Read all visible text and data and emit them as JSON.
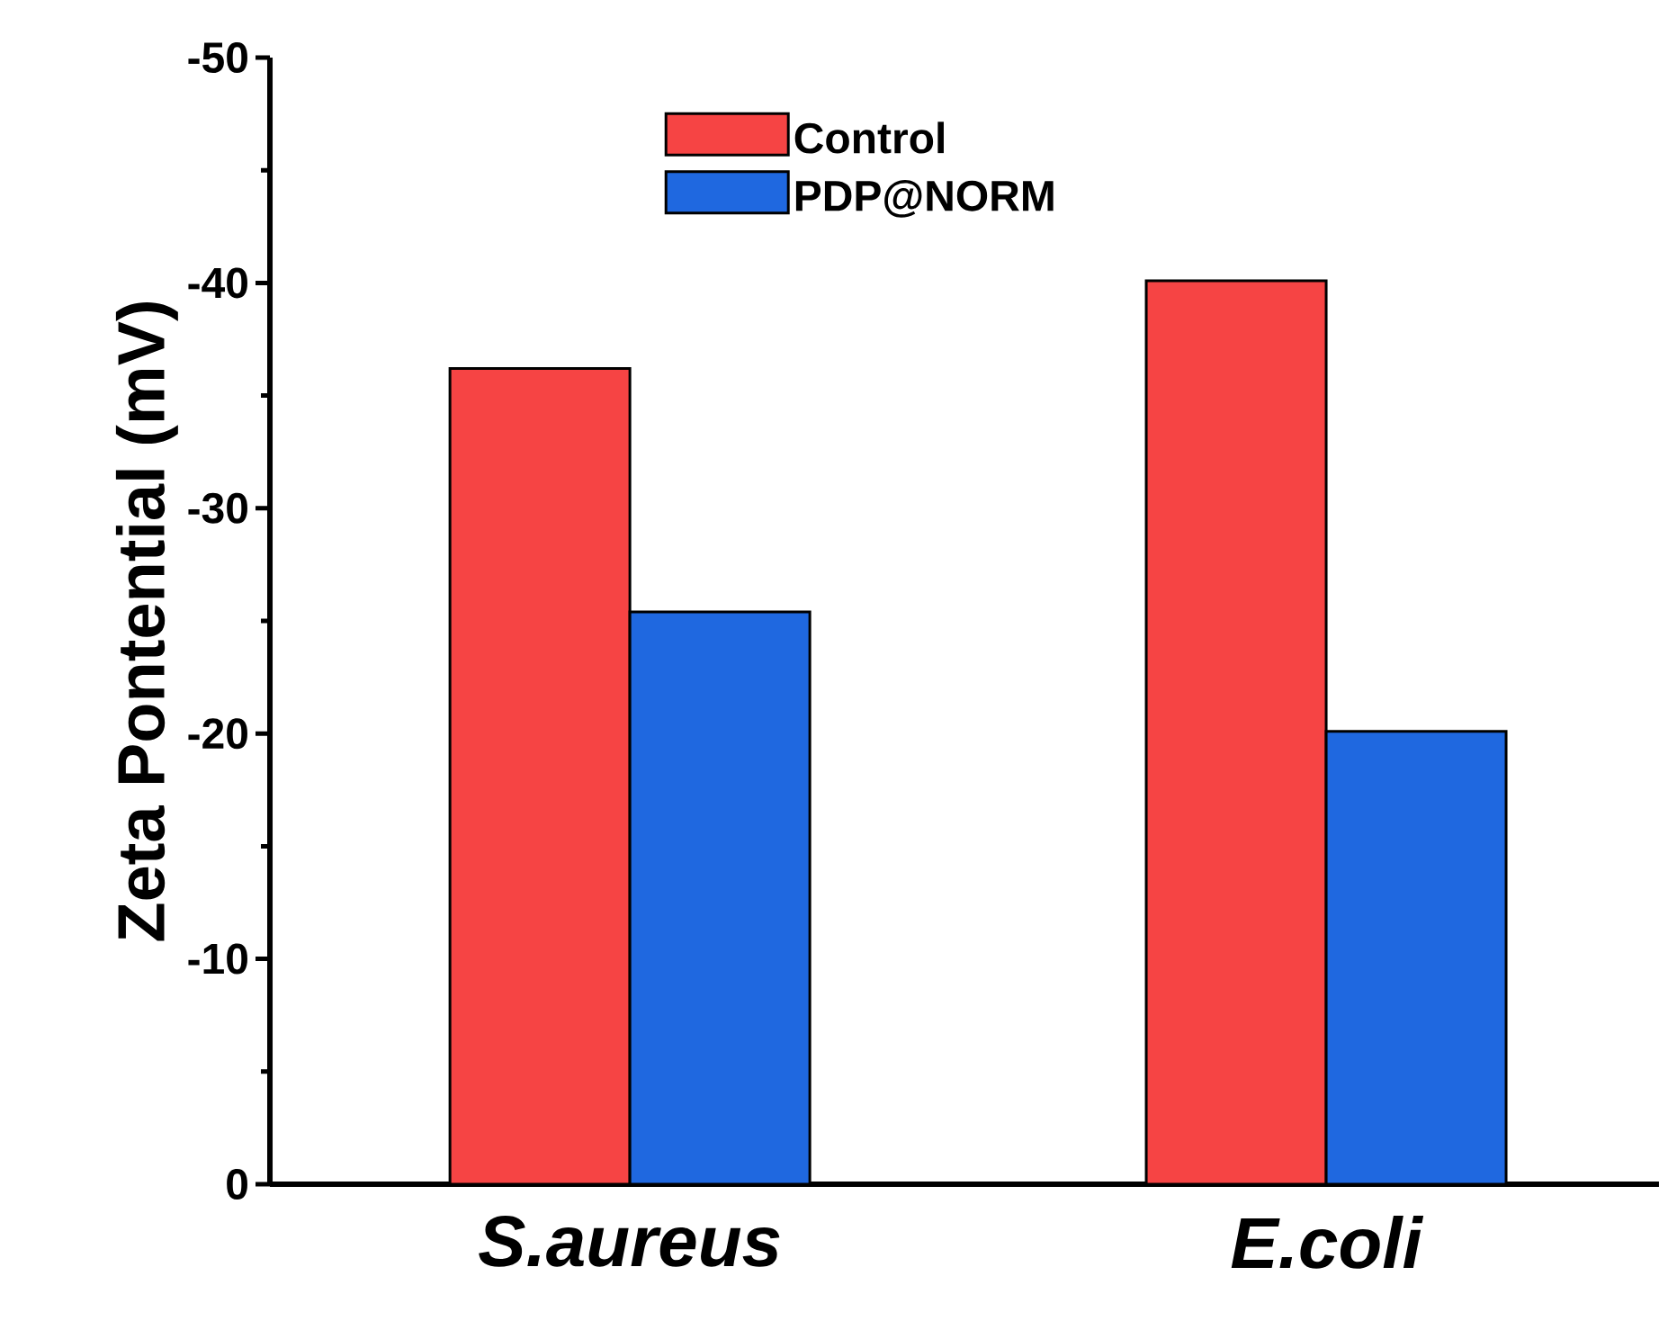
{
  "chart_data": {
    "type": "bar",
    "ylabel": "Zeta Pontential (mV)",
    "categories": [
      "S.aureus",
      "E.coli"
    ],
    "series": [
      {
        "name": "Control",
        "color": "#f64444",
        "values": [
          -36.2,
          -40.1
        ]
      },
      {
        "name": "PDP@NORM",
        "color": "#1f68e0",
        "values": [
          -25.4,
          -20.1
        ]
      }
    ],
    "ylim": [
      0,
      -50
    ],
    "yticks": [
      0,
      -10,
      -20,
      -30,
      -40,
      -50
    ],
    "grid": false,
    "legend": "top"
  }
}
